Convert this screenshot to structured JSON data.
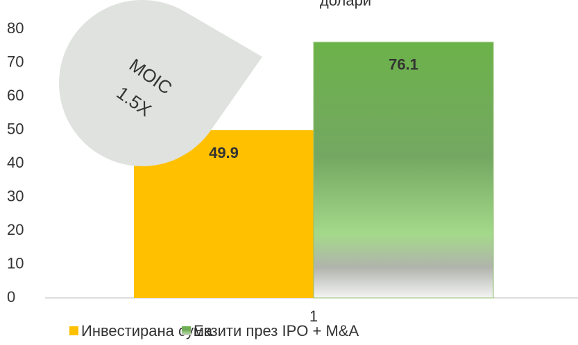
{
  "chart_data": {
    "type": "bar",
    "title": "долари",
    "categories": [
      "1"
    ],
    "series": [
      {
        "name": "Инвестирана сума",
        "color": "#FFC000",
        "values": [
          49.9
        ]
      },
      {
        "name": "Екзити през IPO + M&A",
        "color": "#70AD47",
        "values": [
          76.1
        ]
      }
    ],
    "ylim": [
      0,
      80
    ],
    "yticks": [
      0,
      10,
      20,
      30,
      40,
      50,
      60,
      70,
      80
    ],
    "annotation": [
      "MOIC",
      "1.5X"
    ],
    "legend": "bottom"
  }
}
